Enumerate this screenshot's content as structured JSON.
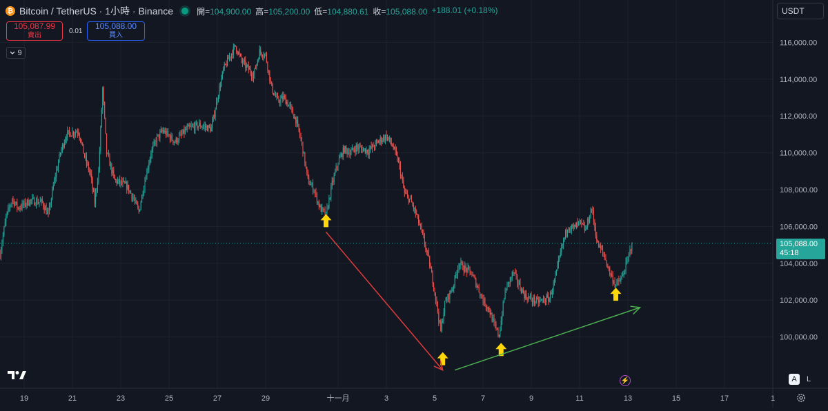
{
  "header": {
    "symbol_title": "Bitcoin / TetherUS · 1小時 · Binance",
    "ohlc": {
      "open_label": "開",
      "open": "104,900.00",
      "high_label": "高",
      "high": "105,200.00",
      "low_label": "低",
      "low": "104,880.61",
      "close_label": "收",
      "close": "105,088.00",
      "change": "+188.01 (+0.18%)"
    }
  },
  "trade": {
    "sell_price": "105,087.99",
    "sell_label": "賣出",
    "spread": "0.01",
    "buy_price": "105,088.00",
    "buy_label": "買入"
  },
  "indicators": {
    "count": "9"
  },
  "currency": {
    "selected": "USDT"
  },
  "price_label": {
    "price": "105,088.00",
    "countdown": "45:18"
  },
  "mode_buttons": {
    "auto": "A",
    "log": "L"
  },
  "colors": {
    "background": "#131722",
    "up": "#26a69a",
    "down": "#ef5350",
    "down_arrow": "#e03c3c",
    "up_arrow": "#4caf50",
    "marker": "#ffd60a",
    "grid": "#1e222d"
  },
  "chart_data": {
    "type": "candlestick",
    "interval": "1h",
    "y_axis": {
      "ticks": [
        100000,
        102000,
        104000,
        106000,
        108000,
        110000,
        112000,
        114000,
        116000
      ],
      "tick_labels": [
        "100,000.00",
        "102,000.00",
        "104,000.00",
        "106,000.00",
        "108,000.00",
        "110,000.00",
        "112,000.00",
        "114,000.00",
        "116,000.00"
      ],
      "ylim": [
        98000,
        116800
      ]
    },
    "x_axis": {
      "ticks": [
        {
          "label": "19",
          "date": "2025-10-19"
        },
        {
          "label": "21",
          "date": "2025-10-21"
        },
        {
          "label": "23",
          "date": "2025-10-23"
        },
        {
          "label": "25",
          "date": "2025-10-25"
        },
        {
          "label": "27",
          "date": "2025-10-27"
        },
        {
          "label": "29",
          "date": "2025-10-29"
        },
        {
          "label": "十一月",
          "date": "2025-11-01"
        },
        {
          "label": "3",
          "date": "2025-11-03"
        },
        {
          "label": "5",
          "date": "2025-11-05"
        },
        {
          "label": "7",
          "date": "2025-11-07"
        },
        {
          "label": "9",
          "date": "2025-11-09"
        },
        {
          "label": "11",
          "date": "2025-11-11"
        },
        {
          "label": "13",
          "date": "2025-11-13"
        },
        {
          "label": "15",
          "date": "2025-11-15"
        },
        {
          "label": "17",
          "date": "2025-11-17"
        },
        {
          "label": "1",
          "date": "2025-11-19"
        }
      ],
      "xlim": [
        "2025-10-18",
        "2025-11-19"
      ]
    },
    "last_price": 105088,
    "price_path": [
      [
        "2025-10-18 00:00",
        104500
      ],
      [
        "2025-10-18 06:00",
        106500
      ],
      [
        "2025-10-18 12:00",
        107500
      ],
      [
        "2025-10-18 18:00",
        107000
      ],
      [
        "2025-10-19 06:00",
        107400
      ],
      [
        "2025-10-19 18:00",
        107300
      ],
      [
        "2025-10-20 00:00",
        106600
      ],
      [
        "2025-10-20 06:00",
        108500
      ],
      [
        "2025-10-20 12:00",
        110000
      ],
      [
        "2025-10-20 18:00",
        111000
      ],
      [
        "2025-10-21 06:00",
        111200
      ],
      [
        "2025-10-21 12:00",
        109800
      ],
      [
        "2025-10-21 18:00",
        108800
      ],
      [
        "2025-10-21 22:00",
        107300
      ],
      [
        "2025-10-22 02:00",
        109000
      ],
      [
        "2025-10-22 06:00",
        113500
      ],
      [
        "2025-10-22 10:00",
        110000
      ],
      [
        "2025-10-22 18:00",
        108500
      ],
      [
        "2025-10-23 06:00",
        108200
      ],
      [
        "2025-10-23 12:00",
        107600
      ],
      [
        "2025-10-23 18:00",
        106800
      ],
      [
        "2025-10-24 00:00",
        108500
      ],
      [
        "2025-10-24 06:00",
        110000
      ],
      [
        "2025-10-24 12:00",
        110800
      ],
      [
        "2025-10-24 18:00",
        111200
      ],
      [
        "2025-10-25 06:00",
        110600
      ],
      [
        "2025-10-25 18:00",
        111300
      ],
      [
        "2025-10-26 06:00",
        111500
      ],
      [
        "2025-10-26 18:00",
        111300
      ],
      [
        "2025-10-27 00:00",
        113000
      ],
      [
        "2025-10-27 06:00",
        114500
      ],
      [
        "2025-10-27 12:00",
        115200
      ],
      [
        "2025-10-27 18:00",
        115800
      ],
      [
        "2025-10-28 00:00",
        115000
      ],
      [
        "2025-10-28 06:00",
        114600
      ],
      [
        "2025-10-28 12:00",
        114200
      ],
      [
        "2025-10-28 18:00",
        115500
      ],
      [
        "2025-10-29 00:00",
        115300
      ],
      [
        "2025-10-29 06:00",
        113500
      ],
      [
        "2025-10-29 12:00",
        112800
      ],
      [
        "2025-10-29 18:00",
        113000
      ],
      [
        "2025-10-30 00:00",
        112500
      ],
      [
        "2025-10-30 06:00",
        111800
      ],
      [
        "2025-10-30 12:00",
        110500
      ],
      [
        "2025-10-30 18:00",
        108500
      ],
      [
        "2025-10-31 00:00",
        108000
      ],
      [
        "2025-10-31 06:00",
        107000
      ],
      [
        "2025-10-31 12:00",
        106600
      ],
      [
        "2025-10-31 18:00",
        108300
      ],
      [
        "2025-11-01 00:00",
        109500
      ],
      [
        "2025-11-01 06:00",
        110200
      ],
      [
        "2025-11-01 12:00",
        110000
      ],
      [
        "2025-11-01 18:00",
        110300
      ],
      [
        "2025-11-02 06:00",
        110100
      ],
      [
        "2025-11-02 18:00",
        110700
      ],
      [
        "2025-11-03 00:00",
        110900
      ],
      [
        "2025-11-03 06:00",
        110400
      ],
      [
        "2025-11-03 12:00",
        109500
      ],
      [
        "2025-11-03 18:00",
        107800
      ],
      [
        "2025-11-04 00:00",
        107400
      ],
      [
        "2025-11-04 06:00",
        106600
      ],
      [
        "2025-11-04 12:00",
        105500
      ],
      [
        "2025-11-04 18:00",
        104200
      ],
      [
        "2025-11-05 00:00",
        102500
      ],
      [
        "2025-11-05 06:00",
        100300
      ],
      [
        "2025-11-05 10:00",
        101800
      ],
      [
        "2025-11-05 18:00",
        102700
      ],
      [
        "2025-11-06 00:00",
        104000
      ],
      [
        "2025-11-06 06:00",
        103700
      ],
      [
        "2025-11-06 12:00",
        103500
      ],
      [
        "2025-11-06 18:00",
        102800
      ],
      [
        "2025-11-07 00:00",
        102000
      ],
      [
        "2025-11-07 06:00",
        101500
      ],
      [
        "2025-11-07 12:00",
        100500
      ],
      [
        "2025-11-07 16:00",
        100100
      ],
      [
        "2025-11-07 22:00",
        102500
      ],
      [
        "2025-11-08 06:00",
        103500
      ],
      [
        "2025-11-08 12:00",
        102800
      ],
      [
        "2025-11-08 18:00",
        102200
      ],
      [
        "2025-11-09 06:00",
        101900
      ],
      [
        "2025-11-09 18:00",
        102100
      ],
      [
        "2025-11-10 00:00",
        103200
      ],
      [
        "2025-11-10 06:00",
        104800
      ],
      [
        "2025-11-10 12:00",
        106000
      ],
      [
        "2025-11-10 18:00",
        105900
      ],
      [
        "2025-11-11 00:00",
        106200
      ],
      [
        "2025-11-11 06:00",
        105800
      ],
      [
        "2025-11-11 12:00",
        107000
      ],
      [
        "2025-11-11 18:00",
        105000
      ],
      [
        "2025-11-12 00:00",
        104500
      ],
      [
        "2025-11-12 06:00",
        103500
      ],
      [
        "2025-11-12 12:00",
        102800
      ],
      [
        "2025-11-12 18:00",
        103200
      ],
      [
        "2025-11-13 00:00",
        104200
      ],
      [
        "2025-11-13 04:00",
        105088
      ]
    ],
    "annotations": [
      {
        "type": "marker-arrow",
        "date": "2025-10-31 12:00",
        "price": 106300
      },
      {
        "type": "marker-arrow",
        "date": "2025-11-05 08:00",
        "price": 98800
      },
      {
        "type": "marker-arrow",
        "date": "2025-11-07 18:00",
        "price": 99300
      },
      {
        "type": "marker-arrow",
        "date": "2025-11-12 12:00",
        "price": 102300
      },
      {
        "type": "trend-arrow",
        "direction": "down",
        "from": {
          "date": "2025-10-31 12:00",
          "price": 105700
        },
        "to": {
          "date": "2025-11-05 08:00",
          "price": 98200
        }
      },
      {
        "type": "trend-arrow",
        "direction": "up",
        "from": {
          "date": "2025-11-05 20:00",
          "price": 98200
        },
        "to": {
          "date": "2025-11-13 12:00",
          "price": 101600
        }
      }
    ]
  }
}
